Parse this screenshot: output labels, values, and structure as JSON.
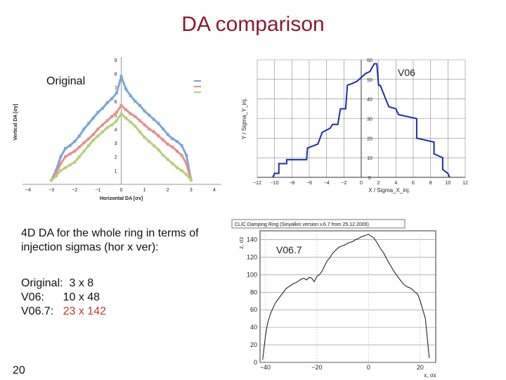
{
  "slide": {
    "title": "DA comparison",
    "description": "4D DA for the whole ring in terms of injection sigmas (hor x ver):",
    "summary": [
      {
        "label": "Original:",
        "value": "3 x 8"
      },
      {
        "label": "V06:",
        "value": "10 x 48"
      },
      {
        "label": "V06.7:",
        "value": "23 x 142"
      }
    ],
    "page_number": "20"
  },
  "chart_data": [
    {
      "type": "line",
      "panel_label": "Original",
      "xlabel": "Horizontal DA [σx]",
      "ylabel": "Vertical DA [σy]",
      "xlim": [
        -4,
        4
      ],
      "ylim": [
        0,
        9
      ],
      "xticks": [
        -4,
        -3,
        -2,
        -1,
        0,
        1,
        2,
        3,
        4
      ],
      "yticks": [
        1,
        2,
        3,
        4,
        5,
        6,
        7,
        8,
        9
      ],
      "series": [
        {
          "color": "#7aa6d6",
          "x": [
            -3.0,
            -2.8,
            -2.6,
            -2.4,
            -2.2,
            -2.0,
            -1.8,
            -1.6,
            -1.4,
            -1.2,
            -1.0,
            -0.8,
            -0.6,
            -0.4,
            -0.2,
            0.0,
            0.2,
            0.4,
            0.6,
            0.8,
            1.0,
            1.2,
            1.4,
            1.6,
            1.8,
            2.0,
            2.2,
            2.4,
            2.6,
            2.8,
            3.0
          ],
          "y": [
            0.3,
            1.0,
            2.0,
            2.6,
            2.8,
            3.1,
            3.5,
            4.0,
            4.4,
            4.8,
            5.2,
            5.5,
            5.9,
            6.2,
            6.6,
            7.8,
            6.9,
            6.4,
            6.0,
            5.7,
            5.3,
            5.0,
            4.7,
            4.4,
            4.0,
            3.6,
            3.3,
            3.1,
            2.8,
            2.1,
            0.3
          ]
        },
        {
          "color": "#e39090",
          "x": [
            -3.0,
            -2.8,
            -2.6,
            -2.4,
            -2.2,
            -2.0,
            -1.8,
            -1.6,
            -1.4,
            -1.2,
            -1.0,
            -0.8,
            -0.6,
            -0.4,
            -0.2,
            0.0,
            0.2,
            0.4,
            0.6,
            0.8,
            1.0,
            1.2,
            1.4,
            1.6,
            1.8,
            2.0,
            2.2,
            2.4,
            2.6,
            2.8,
            3.0
          ],
          "y": [
            0.3,
            0.8,
            1.5,
            2.0,
            2.2,
            2.4,
            2.7,
            3.0,
            3.3,
            3.6,
            4.0,
            4.3,
            4.6,
            4.9,
            5.2,
            5.7,
            5.4,
            5.1,
            4.9,
            4.6,
            4.3,
            4.0,
            3.8,
            3.5,
            3.2,
            2.9,
            2.7,
            2.4,
            2.1,
            1.5,
            0.3
          ]
        },
        {
          "color": "#b6cf7a",
          "x": [
            -3.0,
            -2.8,
            -2.6,
            -2.4,
            -2.2,
            -2.0,
            -1.8,
            -1.6,
            -1.4,
            -1.2,
            -1.0,
            -0.8,
            -0.6,
            -0.4,
            -0.2,
            0.0,
            0.2,
            0.4,
            0.6,
            0.8,
            1.0,
            1.2,
            1.4,
            1.6,
            1.8,
            2.0,
            2.2,
            2.4,
            2.6,
            2.8,
            3.0
          ],
          "y": [
            0.3,
            0.6,
            1.0,
            1.2,
            1.4,
            1.6,
            2.0,
            2.4,
            2.8,
            3.2,
            3.5,
            3.8,
            4.1,
            4.3,
            4.6,
            5.1,
            4.8,
            4.5,
            4.2,
            3.8,
            3.4,
            3.1,
            2.8,
            2.5,
            2.1,
            1.8,
            1.5,
            1.2,
            1.0,
            0.7,
            0.3
          ]
        }
      ]
    },
    {
      "type": "line",
      "panel_label": "V06",
      "xlabel": "X / Sigma_X_inj.",
      "ylabel": "Y / Sigma_Y_inj.",
      "xlim": [
        -12,
        12
      ],
      "ylim": [
        0,
        60
      ],
      "xticks": [
        -12,
        -10,
        -8,
        -6,
        -4,
        -2,
        0,
        2,
        4,
        6,
        8,
        10,
        12
      ],
      "yticks": [
        0,
        10,
        20,
        30,
        40,
        50,
        60
      ],
      "series": [
        {
          "color": "#1a2fa8",
          "x": [
            -10.2,
            -10.0,
            -9.5,
            -9.5,
            -8.6,
            -8.6,
            -6.3,
            -6.2,
            -5.0,
            -4.5,
            -3.6,
            -3.3,
            -2.7,
            -2.4,
            -1.8,
            -1.6,
            -1.0,
            -0.5,
            0.0,
            0.5,
            1.0,
            1.5,
            1.8,
            2.0,
            2.2,
            3.0,
            3.2,
            4.0,
            4.3,
            6.4,
            6.4,
            8.4,
            8.4,
            9.4,
            9.4,
            10.0,
            10.2
          ],
          "y": [
            0,
            2,
            2,
            7,
            7,
            9,
            9,
            15,
            17,
            23,
            25,
            27,
            27,
            35,
            35,
            47,
            48,
            49,
            51,
            53,
            54,
            58,
            58,
            47,
            47,
            38,
            36,
            35,
            32,
            30,
            20,
            18,
            12,
            10,
            4,
            2,
            0
          ]
        }
      ]
    },
    {
      "type": "line",
      "panel_label": "V06.7",
      "title": "CLIC Damping Ring (Sinyalkin version v.6.7 from 25.12.2009)",
      "xlabel": "x, σx",
      "ylabel": "z, σz",
      "xlim": [
        -42,
        26
      ],
      "ylim": [
        0,
        150
      ],
      "xticks": [
        -40,
        -20,
        0,
        20
      ],
      "yticks": [
        0,
        20,
        40,
        60,
        80,
        100,
        120,
        140
      ],
      "series": [
        {
          "color": "#111111",
          "x": [
            -41,
            -40.5,
            -40,
            -39.5,
            -39,
            -38,
            -37,
            -36,
            -35,
            -34,
            -33,
            -32,
            -31,
            -30,
            -29,
            -28,
            -27,
            -26,
            -25,
            -24,
            -23,
            -22,
            -21,
            -20,
            -19,
            -18,
            -17,
            -16,
            -15,
            -14,
            -13,
            -12,
            -11,
            -10,
            -9,
            -8,
            -7,
            -6,
            -5,
            -4,
            -3,
            -2,
            -1,
            0,
            1,
            2,
            3,
            4,
            5,
            6,
            7,
            8,
            9,
            10,
            11,
            12,
            13,
            14,
            15,
            16,
            17,
            18,
            19,
            20,
            21,
            22,
            22.5,
            23,
            23.5
          ],
          "y": [
            3,
            15,
            28,
            38,
            45,
            55,
            62,
            68,
            72,
            76,
            80,
            84,
            86,
            88,
            90,
            91,
            93,
            95,
            96,
            94,
            97,
            96,
            92,
            98,
            100,
            104,
            110,
            116,
            119,
            124,
            127,
            130,
            132,
            133,
            134,
            136,
            137,
            138,
            140,
            141,
            143,
            144,
            145,
            146,
            144,
            142,
            138,
            133,
            128,
            124,
            118,
            113,
            108,
            103,
            99,
            95,
            91,
            88,
            86,
            85,
            83,
            80,
            78,
            70,
            60,
            50,
            35,
            20,
            5
          ]
        }
      ]
    }
  ]
}
